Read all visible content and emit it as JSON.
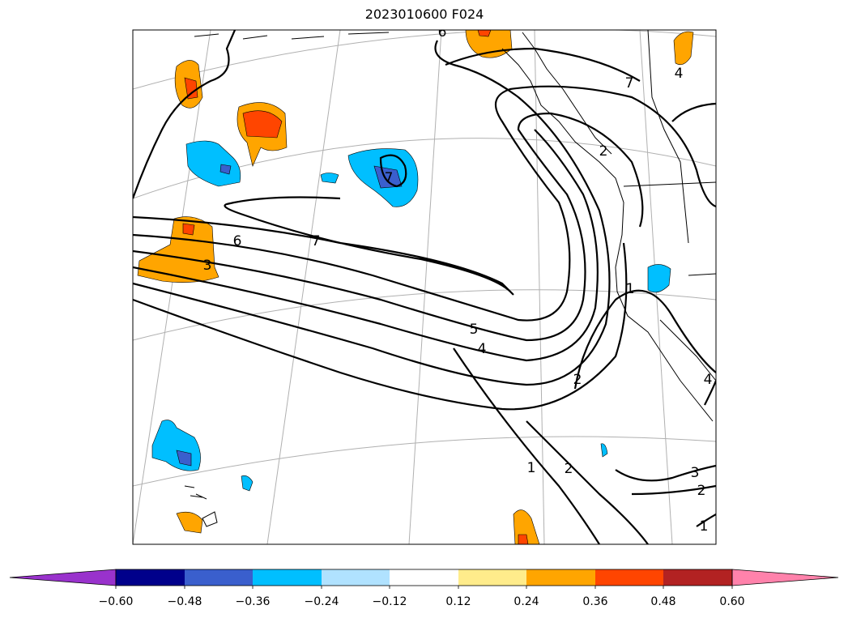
{
  "title": "2023010600 F024",
  "contour_labels": [
    "6",
    "7",
    "3",
    "7",
    "5",
    "4",
    "2",
    "1",
    "2",
    "3",
    "2",
    "1",
    "4",
    "2",
    "1",
    "6",
    "4",
    "7"
  ],
  "colorbar": {
    "ticks": [
      "−0.60",
      "−0.48",
      "−0.36",
      "−0.24",
      "−0.12",
      "0.12",
      "0.24",
      "0.36",
      "0.48",
      "0.60"
    ],
    "colors": [
      "#9932cc",
      "#00008b",
      "#3a5fcd",
      "#00bfff",
      "#b0e2ff",
      "#ffffff",
      "#ffec8b",
      "#ffa500",
      "#ff4500",
      "#b22222",
      "#ff82ab"
    ]
  },
  "fill_colors": {
    "light_blue": "#00bfff",
    "mid_blue": "#3a5fcd",
    "orange": "#ffa500",
    "red_orange": "#ff4500"
  }
}
